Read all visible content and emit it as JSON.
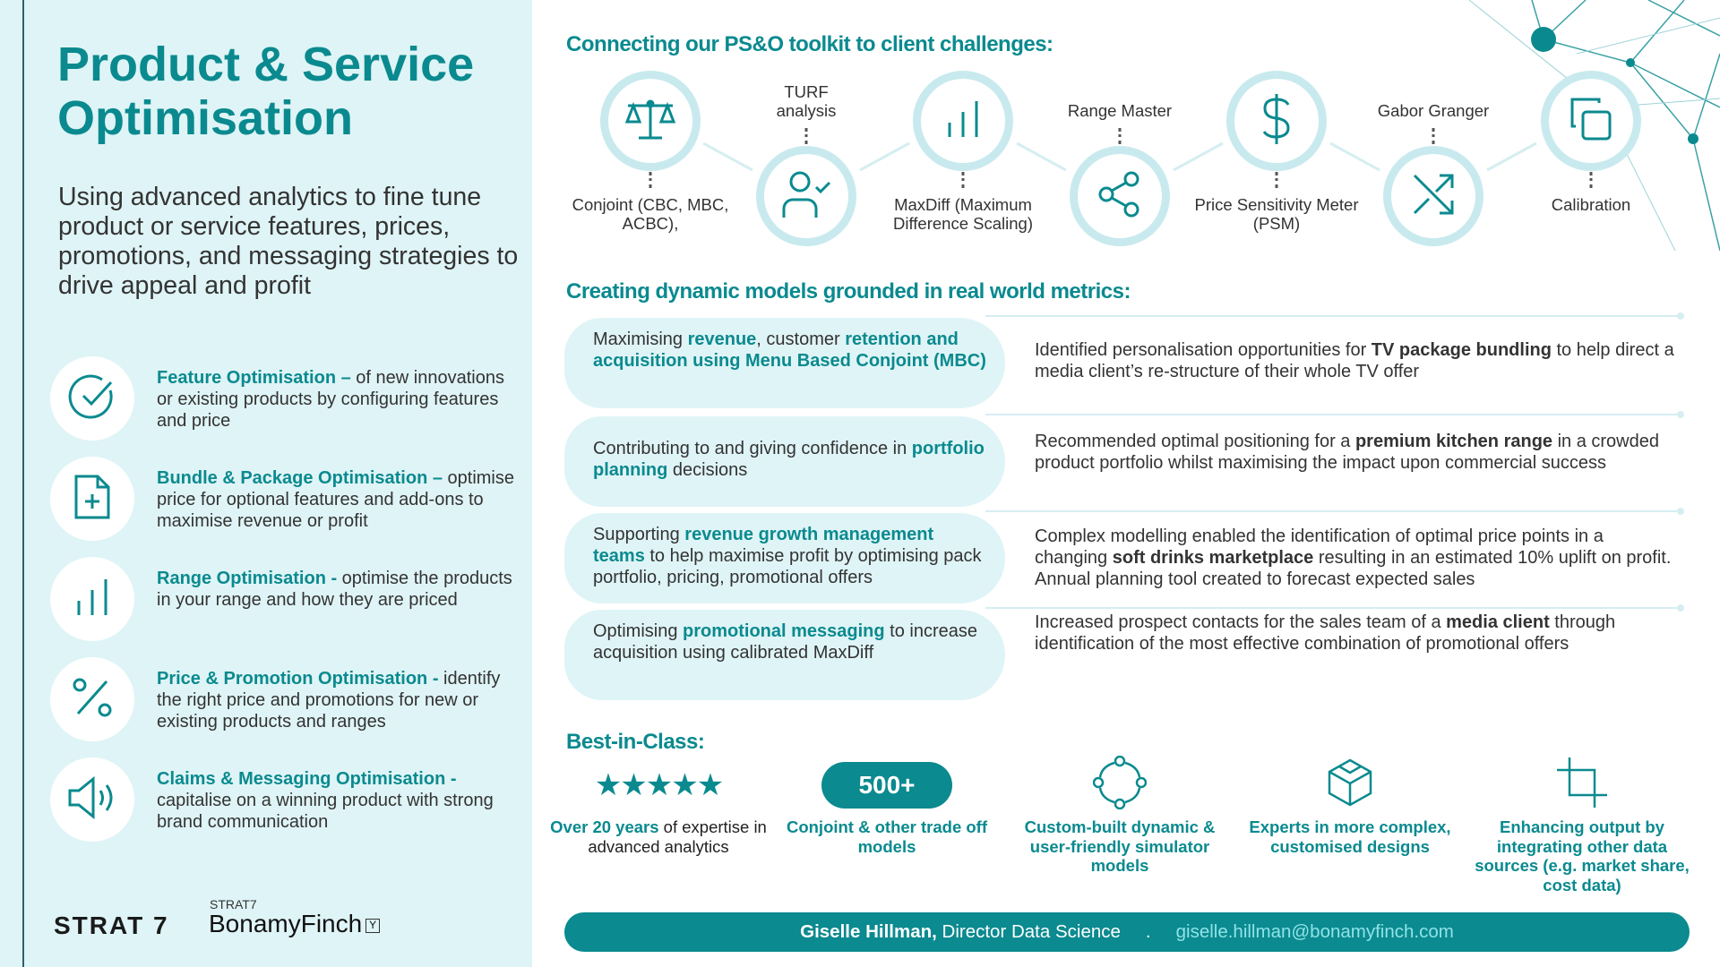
{
  "colors": {
    "accent": "#0a8a8f",
    "panel": "#dff4f6",
    "ring": "#c8eaee"
  },
  "title": "Product & Service Optimisation",
  "subtitle": "Using advanced analytics to fine tune product or service features, prices, promotions, and messaging strategies to drive appeal and profit",
  "features": [
    {
      "icon": "check-circle-icon",
      "heading": "Feature Optimisation –",
      "text": " of new innovations or existing products by configuring features and price"
    },
    {
      "icon": "file-plus-icon",
      "heading": "Bundle & Package Optimisation –",
      "text": " optimise price for optional features and add-ons to maximise revenue or profit"
    },
    {
      "icon": "bar-chart-icon",
      "heading": "Range Optimisation -",
      "text": " optimise the products in your range and how they are priced"
    },
    {
      "icon": "percent-icon",
      "heading": "Price & Promotion Optimisation -",
      "text": " identify the right price and promotions for new or existing products and ranges"
    },
    {
      "icon": "speaker-icon",
      "heading": "Claims & Messaging Optimisation -",
      "text": " capitalise on a winning product with strong brand communication"
    }
  ],
  "logos": {
    "strat7": "STRAT 7",
    "bf_small": "STRAT7",
    "bf": "BonamyFinch"
  },
  "toolkit": {
    "heading": "Connecting our PS&O toolkit to client challenges:",
    "items": [
      {
        "icon": "scales-icon",
        "label": "Conjoint (CBC, MBC, ACBC),"
      },
      {
        "icon": "user-check-icon",
        "label": "TURF analysis"
      },
      {
        "icon": "bar-chart-icon",
        "label": "MaxDiff (Maximum Difference Scaling)"
      },
      {
        "icon": "share-icon",
        "label": "Range Master"
      },
      {
        "icon": "dollar-icon",
        "label": "Price Sensitivity Meter (PSM)"
      },
      {
        "icon": "shuffle-icon",
        "label": "Gabor Granger"
      },
      {
        "icon": "copy-icon",
        "label": "Calibration"
      }
    ]
  },
  "models": {
    "heading": "Creating dynamic models grounded in real world metrics:",
    "rows": [
      {
        "left": [
          [
            "Maximising ",
            0
          ],
          [
            "revenue",
            1
          ],
          [
            ", customer ",
            0
          ],
          [
            "retention and acquisition using Menu Based Conjoint (MBC)",
            1
          ]
        ],
        "right": [
          [
            "Identified personalisation opportunities for ",
            0
          ],
          [
            "TV package bundling",
            2
          ],
          [
            " to help direct a media client’s re-structure of their whole TV offer",
            0
          ]
        ]
      },
      {
        "left": [
          [
            "Contributing to and giving confidence in ",
            0
          ],
          [
            "portfolio planning",
            1
          ],
          [
            " decisions",
            0
          ]
        ],
        "right": [
          [
            "Recommended optimal positioning for a ",
            0
          ],
          [
            "premium kitchen range",
            2
          ],
          [
            " in a crowded product portfolio whilst maximising the  impact upon commercial success",
            0
          ]
        ]
      },
      {
        "left": [
          [
            "Supporting ",
            0
          ],
          [
            "revenue growth management teams",
            1
          ],
          [
            " to help maximise profit by optimising pack portfolio, pricing, promotional offers",
            0
          ]
        ],
        "right": [
          [
            "Complex modelling enabled the identification of optimal price points in a changing ",
            0
          ],
          [
            "soft drinks marketplace",
            2
          ],
          [
            " resulting in an estimated 10% uplift on profit. Annual planning tool created to forecast expected sales",
            0
          ]
        ]
      },
      {
        "left": [
          [
            "Optimising ",
            0
          ],
          [
            "promotional messaging",
            1
          ],
          [
            " to increase acquisition using calibrated MaxDiff",
            0
          ]
        ],
        "right": [
          [
            "Increased prospect contacts for the sales team of a ",
            0
          ],
          [
            "media client",
            2
          ],
          [
            " through identification of the most effective combination of promotional offers",
            0
          ]
        ]
      }
    ]
  },
  "best": {
    "heading": "Best-in-Class:",
    "stars": "★★★★★",
    "stars_rating": 5,
    "badge": "500+",
    "items": [
      {
        "bold": "Over 20 years",
        "rest": " of expertise in advanced analytics"
      },
      {
        "bold": "Conjoint & other trade off models",
        "rest": ""
      },
      {
        "bold": "Custom-built dynamic & user-friendly simulator models",
        "rest": ""
      },
      {
        "bold": "Experts in more complex, customised designs",
        "rest": ""
      },
      {
        "bold": "Enhancing output by integrating other data sources (e.g. market share, cost data)",
        "rest": ""
      }
    ]
  },
  "footer": {
    "name": "Giselle Hillman,",
    "role": " Director Data Science",
    "sep": ".",
    "email": "giselle.hillman@bonamyfinch.com"
  }
}
